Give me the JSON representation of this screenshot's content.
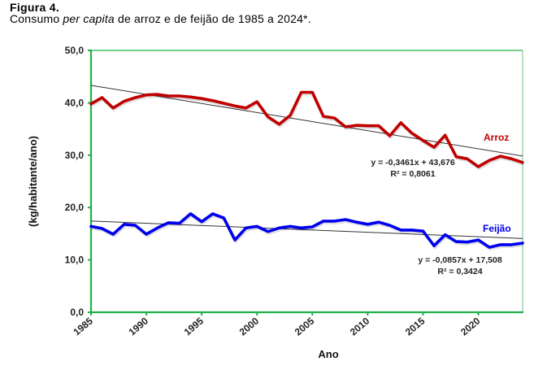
{
  "figure": {
    "label": "Figura 4.",
    "caption_prefix": "Consumo ",
    "caption_italic": "per capita",
    "caption_suffix": " de arroz e de feijão de 1985 a 2024*."
  },
  "chart_data": {
    "type": "line",
    "title": "Consumo per capita de arroz e de feijão de 1985 a 2024*.",
    "xlabel": "Ano",
    "ylabel": "(kg/habitante/ano)",
    "xlim": [
      1985,
      2024
    ],
    "ylim": [
      0,
      50
    ],
    "x_ticks": [
      "1985",
      "1990",
      "1995",
      "2000",
      "2005",
      "2010",
      "2015",
      "2020"
    ],
    "y_ticks": [
      "0,0",
      "10,0",
      "20,0",
      "30,0",
      "40,0",
      "50,0"
    ],
    "grid": false,
    "x": [
      1985,
      1986,
      1987,
      1988,
      1989,
      1990,
      1991,
      1992,
      1993,
      1994,
      1995,
      1996,
      1997,
      1998,
      1999,
      2000,
      2001,
      2002,
      2003,
      2004,
      2005,
      2006,
      2007,
      2008,
      2009,
      2010,
      2011,
      2012,
      2013,
      2014,
      2015,
      2016,
      2017,
      2018,
      2019,
      2020,
      2021,
      2022,
      2023,
      2024
    ],
    "series": [
      {
        "name": "Arroz",
        "color": "#c00000",
        "values": [
          39.8,
          41.0,
          39.0,
          40.3,
          41.0,
          41.5,
          41.6,
          41.3,
          41.3,
          41.1,
          40.8,
          40.4,
          39.9,
          39.4,
          39.0,
          40.2,
          37.3,
          35.9,
          37.6,
          42.0,
          42.0,
          37.4,
          37.1,
          35.4,
          35.7,
          35.6,
          35.6,
          33.7,
          36.2,
          34.2,
          32.8,
          31.5,
          33.8,
          29.7,
          29.3,
          27.8,
          29.0,
          29.8,
          29.3,
          28.6
        ],
        "trendline": {
          "slope": -0.3461,
          "intercept": 43.676,
          "equation": "y = -0,3461x + 43,676",
          "r2": "R² = 0,8061"
        }
      },
      {
        "name": "Feijão",
        "color": "#0000ee",
        "values": [
          16.4,
          16.0,
          14.9,
          16.8,
          16.6,
          14.9,
          16.1,
          17.1,
          17.0,
          18.8,
          17.3,
          18.8,
          18.0,
          13.8,
          16.1,
          16.4,
          15.4,
          16.1,
          16.4,
          16.1,
          16.3,
          17.4,
          17.4,
          17.7,
          17.2,
          16.8,
          17.2,
          16.6,
          15.7,
          15.7,
          15.5,
          12.7,
          14.8,
          13.5,
          13.4,
          13.8,
          12.4,
          12.9,
          12.9,
          13.2
        ],
        "trendline": {
          "slope": -0.0857,
          "intercept": 17.508,
          "equation": "y = -0,0857x + 17,508",
          "r2": "R² = 0,3424"
        }
      }
    ]
  },
  "colors": {
    "axis": "#22b04a",
    "trend": "#333333"
  }
}
